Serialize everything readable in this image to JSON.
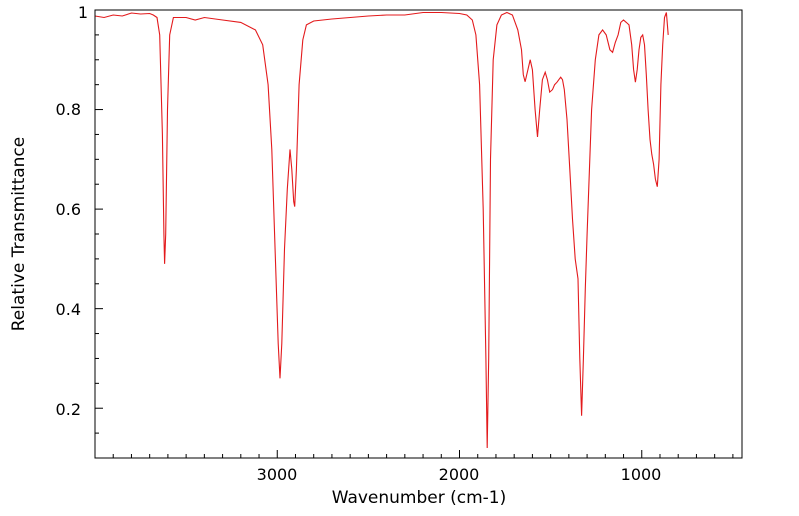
{
  "chart_data": {
    "type": "line",
    "xlabel": "Wavenumber (cm-1)",
    "ylabel": "Relative Transmittance",
    "xlim": [
      4000,
      450
    ],
    "ylim": [
      0.1,
      1.0
    ],
    "x_ticks": [
      3000,
      2000,
      1000
    ],
    "x_tick_labels": [
      "3000",
      "2000",
      "1000"
    ],
    "y_ticks": [
      0.2,
      0.4,
      0.6,
      0.8,
      1.0
    ],
    "y_tick_labels": [
      "0.2",
      "0.4",
      "0.6",
      "0.8",
      "1"
    ],
    "grid": false,
    "legend": "none",
    "line_color": "#e31a1c",
    "series": [
      {
        "points": [
          [
            4000,
            0.988
          ],
          [
            3950,
            0.985
          ],
          [
            3900,
            0.99
          ],
          [
            3850,
            0.988
          ],
          [
            3800,
            0.994
          ],
          [
            3750,
            0.992
          ],
          [
            3700,
            0.993
          ],
          [
            3680,
            0.99
          ],
          [
            3660,
            0.985
          ],
          [
            3645,
            0.95
          ],
          [
            3630,
            0.75
          ],
          [
            3622,
            0.55
          ],
          [
            3618,
            0.49
          ],
          [
            3612,
            0.55
          ],
          [
            3602,
            0.8
          ],
          [
            3590,
            0.95
          ],
          [
            3570,
            0.985
          ],
          [
            3500,
            0.985
          ],
          [
            3450,
            0.98
          ],
          [
            3400,
            0.985
          ],
          [
            3300,
            0.98
          ],
          [
            3200,
            0.975
          ],
          [
            3120,
            0.96
          ],
          [
            3080,
            0.93
          ],
          [
            3050,
            0.85
          ],
          [
            3030,
            0.72
          ],
          [
            3010,
            0.5
          ],
          [
            2995,
            0.33
          ],
          [
            2985,
            0.26
          ],
          [
            2975,
            0.33
          ],
          [
            2960,
            0.52
          ],
          [
            2945,
            0.64
          ],
          [
            2930,
            0.72
          ],
          [
            2920,
            0.68
          ],
          [
            2910,
            0.615
          ],
          [
            2904,
            0.605
          ],
          [
            2895,
            0.68
          ],
          [
            2880,
            0.85
          ],
          [
            2860,
            0.94
          ],
          [
            2840,
            0.97
          ],
          [
            2800,
            0.978
          ],
          [
            2700,
            0.982
          ],
          [
            2600,
            0.985
          ],
          [
            2500,
            0.988
          ],
          [
            2400,
            0.99
          ],
          [
            2300,
            0.99
          ],
          [
            2200,
            0.995
          ],
          [
            2100,
            0.995
          ],
          [
            2000,
            0.993
          ],
          [
            1960,
            0.99
          ],
          [
            1930,
            0.98
          ],
          [
            1910,
            0.95
          ],
          [
            1890,
            0.85
          ],
          [
            1870,
            0.6
          ],
          [
            1855,
            0.3
          ],
          [
            1848,
            0.12
          ],
          [
            1840,
            0.3
          ],
          [
            1830,
            0.7
          ],
          [
            1815,
            0.9
          ],
          [
            1795,
            0.97
          ],
          [
            1770,
            0.99
          ],
          [
            1740,
            0.995
          ],
          [
            1710,
            0.99
          ],
          [
            1680,
            0.96
          ],
          [
            1660,
            0.92
          ],
          [
            1650,
            0.87
          ],
          [
            1640,
            0.856
          ],
          [
            1625,
            0.88
          ],
          [
            1612,
            0.9
          ],
          [
            1600,
            0.88
          ],
          [
            1585,
            0.8
          ],
          [
            1572,
            0.745
          ],
          [
            1560,
            0.8
          ],
          [
            1545,
            0.86
          ],
          [
            1530,
            0.875
          ],
          [
            1518,
            0.86
          ],
          [
            1505,
            0.835
          ],
          [
            1490,
            0.84
          ],
          [
            1478,
            0.85
          ],
          [
            1465,
            0.855
          ],
          [
            1455,
            0.86
          ],
          [
            1445,
            0.865
          ],
          [
            1435,
            0.86
          ],
          [
            1425,
            0.84
          ],
          [
            1410,
            0.78
          ],
          [
            1395,
            0.68
          ],
          [
            1380,
            0.58
          ],
          [
            1365,
            0.5
          ],
          [
            1350,
            0.46
          ],
          [
            1340,
            0.3
          ],
          [
            1330,
            0.185
          ],
          [
            1320,
            0.3
          ],
          [
            1310,
            0.44
          ],
          [
            1300,
            0.55
          ],
          [
            1290,
            0.65
          ],
          [
            1275,
            0.8
          ],
          [
            1255,
            0.9
          ],
          [
            1235,
            0.95
          ],
          [
            1215,
            0.96
          ],
          [
            1195,
            0.95
          ],
          [
            1175,
            0.92
          ],
          [
            1160,
            0.915
          ],
          [
            1145,
            0.935
          ],
          [
            1130,
            0.95
          ],
          [
            1115,
            0.975
          ],
          [
            1100,
            0.98
          ],
          [
            1085,
            0.975
          ],
          [
            1070,
            0.97
          ],
          [
            1055,
            0.93
          ],
          [
            1045,
            0.88
          ],
          [
            1035,
            0.855
          ],
          [
            1025,
            0.88
          ],
          [
            1015,
            0.92
          ],
          [
            1005,
            0.945
          ],
          [
            995,
            0.95
          ],
          [
            985,
            0.93
          ],
          [
            975,
            0.87
          ],
          [
            965,
            0.8
          ],
          [
            955,
            0.74
          ],
          [
            945,
            0.71
          ],
          [
            935,
            0.69
          ],
          [
            925,
            0.66
          ],
          [
            915,
            0.645
          ],
          [
            905,
            0.7
          ],
          [
            895,
            0.85
          ],
          [
            885,
            0.93
          ],
          [
            875,
            0.985
          ],
          [
            865,
            0.995
          ],
          [
            855,
            0.95
          ]
        ]
      }
    ]
  }
}
